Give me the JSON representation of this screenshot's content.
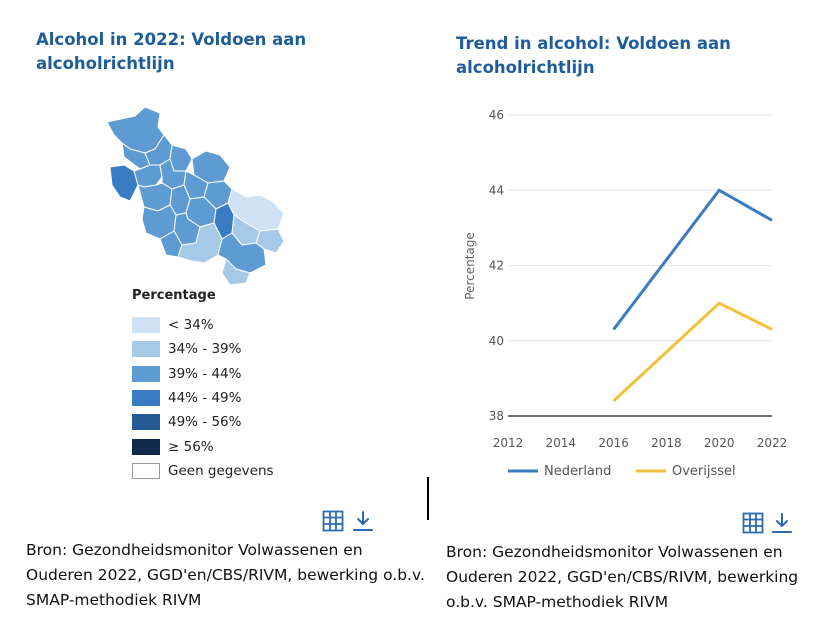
{
  "map_panel": {
    "title": "Alcohol in 2022: Voldoen aan alcoholrichtlijn",
    "legend_title": "Percentage",
    "legend": [
      {
        "label": "< 34%",
        "color": "#cfe2f3"
      },
      {
        "label": "34% - 39%",
        "color": "#a7c9e8"
      },
      {
        "label": "39% - 44%",
        "color": "#5e9bd3"
      },
      {
        "label": "44% - 49%",
        "color": "#3a7cc4"
      },
      {
        "label": "49% - 56%",
        "color": "#265a95"
      },
      {
        "label": "≥ 56%",
        "color": "#0f2a4a"
      },
      {
        "label": "Geen gegevens",
        "color": "#ffffff"
      }
    ],
    "source": "Bron: Gezondheidsmonitor Volwassenen en Ouderen 2022, GGD'en/CBS/RIVM, bewerking o.b.v. SMAP-methodiek RIVM",
    "icons": [
      "table-icon",
      "download-icon"
    ]
  },
  "trend_panel": {
    "title": "Trend in alcohol: Voldoen aan alcoholrichtlijn",
    "source": "Bron: Gezondheidsmonitor Volwassenen en Ouderen 2022, GGD'en/CBS/RIVM, bewerking o.b.v. SMAP-methodiek RIVM",
    "icons": [
      "table-icon",
      "download-icon"
    ]
  },
  "chart_data": {
    "type": "line",
    "title": "Trend in alcohol: Voldoen aan alcoholrichtlijn",
    "xlabel": "",
    "ylabel": "Percentage",
    "xlim": [
      2012,
      2022
    ],
    "ylim": [
      38,
      46
    ],
    "xticks": [
      2012,
      2014,
      2016,
      2018,
      2020,
      2022
    ],
    "yticks": [
      38,
      40,
      42,
      44,
      46
    ],
    "grid": true,
    "legend_position": "bottom",
    "series": [
      {
        "name": "Nederland",
        "color": "#3a7cc4",
        "x": [
          2016,
          2020,
          2022
        ],
        "values": [
          40.3,
          44.0,
          43.2
        ]
      },
      {
        "name": "Overijssel",
        "color": "#f0c03c",
        "x": [
          2016,
          2020,
          2022
        ],
        "values": [
          38.4,
          41.0,
          40.3
        ]
      }
    ]
  }
}
